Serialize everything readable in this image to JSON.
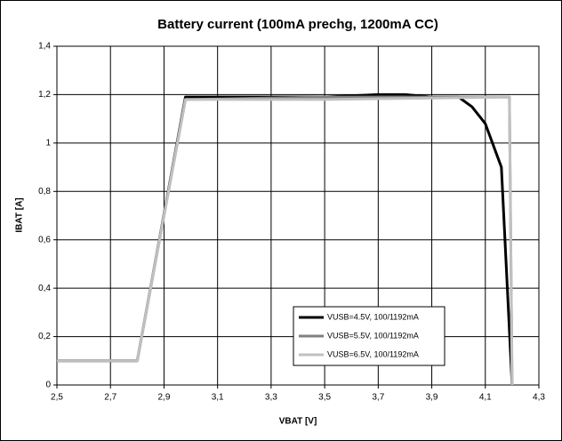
{
  "chart_data": {
    "type": "line",
    "title": "Battery current (100mA prechg, 1200mA CC)",
    "xlabel": "VBAT [V]",
    "ylabel": "IBAT [A]",
    "xlim": [
      2.5,
      4.3
    ],
    "xticks": [
      {
        "value": 2.5,
        "label": "2,5"
      },
      {
        "value": 2.7,
        "label": "2,7"
      },
      {
        "value": 2.9,
        "label": "2,9"
      },
      {
        "value": 3.1,
        "label": "3,1"
      },
      {
        "value": 3.3,
        "label": "3,3"
      },
      {
        "value": 3.5,
        "label": "3,5"
      },
      {
        "value": 3.7,
        "label": "3,7"
      },
      {
        "value": 3.9,
        "label": "3,9"
      },
      {
        "value": 4.1,
        "label": "4,1"
      },
      {
        "value": 4.3,
        "label": "4,3"
      }
    ],
    "ylim": [
      0,
      1.4
    ],
    "yticks": [
      0,
      {
        "value": 0.2,
        "label": "0,2"
      },
      {
        "value": 0.4,
        "label": "0,4"
      },
      {
        "value": 0.6,
        "label": "0,6"
      },
      {
        "value": 0.8,
        "label": "0,8"
      },
      1,
      {
        "value": 1.2,
        "label": "1,2"
      },
      {
        "value": 1.4,
        "label": "1,4"
      }
    ],
    "grid": true,
    "legend": "lower right",
    "series": [
      {
        "name": "VUSB=4.5V, 100/1192mA",
        "color": "#000000",
        "x": [
          2.5,
          2.8,
          2.98,
          3.5,
          3.7,
          3.8,
          3.9,
          4.0,
          4.05,
          4.1,
          4.16,
          4.2
        ],
        "values": [
          0.1,
          0.1,
          1.19,
          1.19,
          1.2,
          1.2,
          1.19,
          1.19,
          1.15,
          1.08,
          0.9,
          0
        ]
      },
      {
        "name": "VUSB=5.5V, 100/1192mA",
        "color": "#808080",
        "x": [
          2.5,
          2.8,
          2.98,
          3.5,
          4.19,
          4.2
        ],
        "values": [
          0.1,
          0.1,
          1.18,
          1.19,
          1.19,
          0
        ]
      },
      {
        "name": "VUSB=6.5V, 100/1192mA",
        "color": "#c0c0c0",
        "x": [
          2.5,
          2.8,
          2.98,
          3.5,
          4.19,
          4.2
        ],
        "values": [
          0.1,
          0.1,
          1.18,
          1.18,
          1.19,
          0
        ]
      }
    ]
  }
}
